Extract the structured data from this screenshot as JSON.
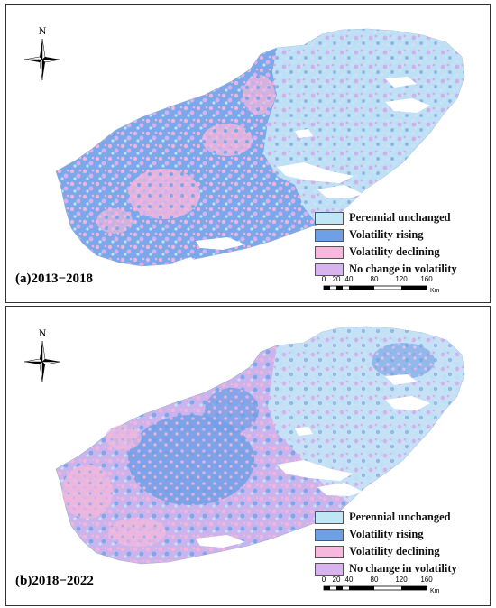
{
  "north_arrow": {
    "label": "N"
  },
  "panels": [
    {
      "label": "(a)2013−2018",
      "legend": [
        {
          "label": "Perennial unchanged",
          "color": "#bfe6f5"
        },
        {
          "label": "Volatility rising",
          "color": "#6ea0e6"
        },
        {
          "label": "Volatility declining",
          "color": "#f6b8dc"
        },
        {
          "label": "No change in volatility",
          "color": "#d9b3ee"
        }
      ],
      "scale": {
        "ticks": [
          "0",
          "20",
          "40",
          "80",
          "120",
          "160"
        ],
        "unit": "Km"
      }
    },
    {
      "label": "(b)2018−2022",
      "legend": [
        {
          "label": "Perennial unchanged",
          "color": "#bfe6f5"
        },
        {
          "label": "Volatility rising",
          "color": "#6ea0e6"
        },
        {
          "label": "Volatility declining",
          "color": "#f6b8dc"
        },
        {
          "label": "No change in volatility",
          "color": "#d9b3ee"
        }
      ],
      "scale": {
        "ticks": [
          "0",
          "20",
          "40",
          "80",
          "120",
          "160"
        ],
        "unit": "Km"
      }
    }
  ]
}
